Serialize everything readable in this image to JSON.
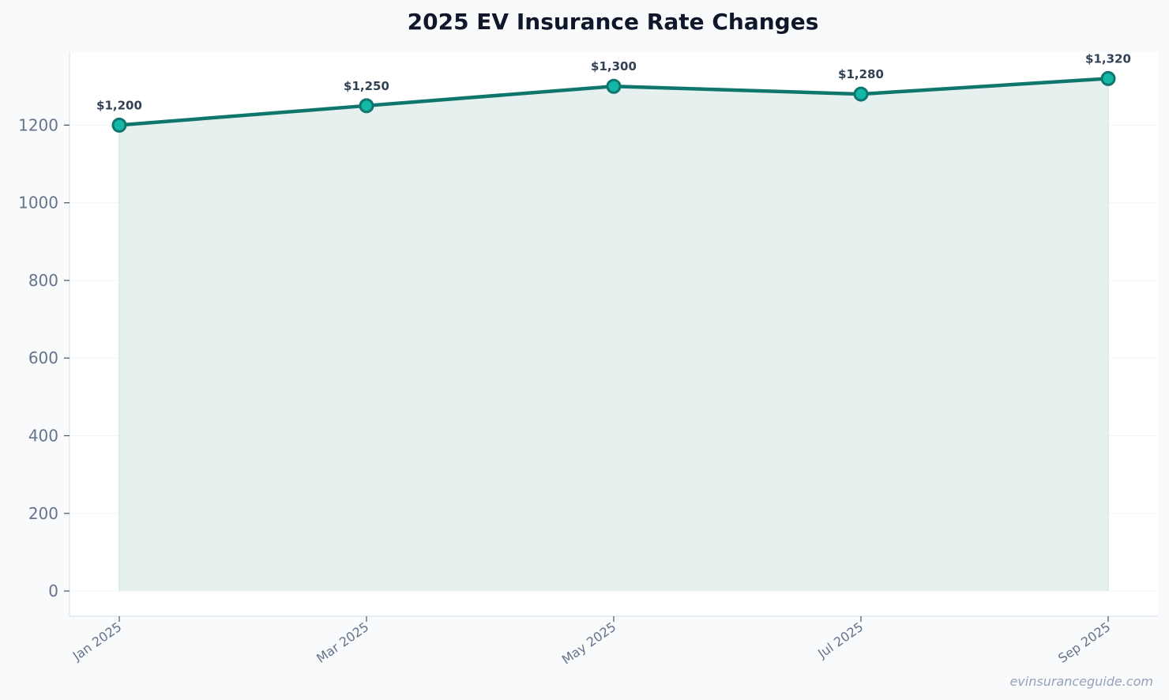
{
  "chart_data": {
    "type": "area",
    "title": "2025 EV Insurance Rate Changes",
    "xlabel": "",
    "ylabel": "",
    "categories": [
      "Jan 2025",
      "Mar 2025",
      "May 2025",
      "Jul 2025",
      "Sep 2025"
    ],
    "series": [
      {
        "values": [
          1200,
          1250,
          1300,
          1280,
          1320
        ],
        "data_labels": [
          "$1,200",
          "$1,250",
          "$1,300",
          "$1,280",
          "$1,320"
        ]
      }
    ],
    "ylim": [
      -65,
      1388
    ],
    "yticks": [
      0,
      200,
      400,
      600,
      800,
      1000,
      1200
    ],
    "grid": true,
    "legend": "none",
    "colors": {
      "line": "#0f766e",
      "marker_fill": "#14b8a6",
      "area_fill": "#e6f1ef",
      "title": "#0f172a",
      "tick_text": "#64748b",
      "data_label": "#334155",
      "plot_background": "#ffffff",
      "page_background": "#f8fafc",
      "axis": "#e2e8f0",
      "watermark": "#94a3b8"
    }
  },
  "watermark": "evinsuranceguide.com"
}
